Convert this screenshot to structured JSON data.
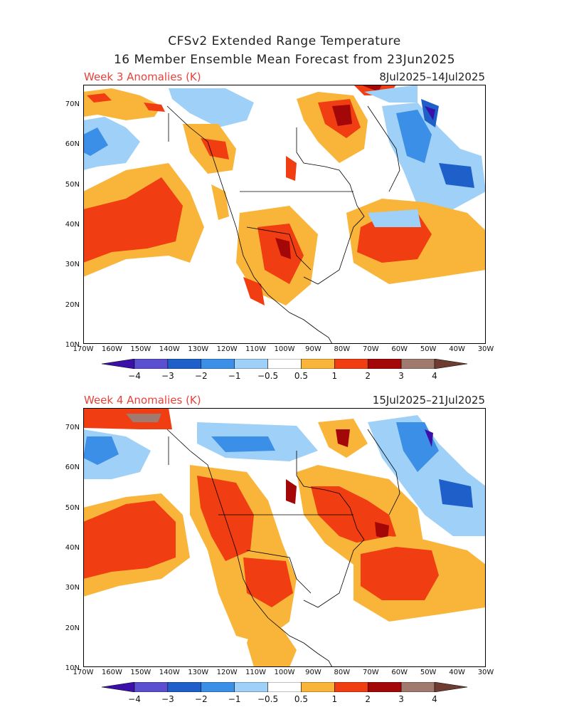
{
  "header": {
    "title_line1": "CFSv2 Extended Range Temperature",
    "title_line2": "16 Member Ensemble Mean Forecast from 23Jun2025"
  },
  "panels": [
    {
      "label": "Week 3 Anomalies (K)",
      "date_range": "8Jul2025–14Jul2025"
    },
    {
      "label": "Week 4 Anomalies (K)",
      "date_range": "15Jul2025–21Jul2025"
    }
  ],
  "axes": {
    "lat_labels": [
      "70N",
      "60N",
      "50N",
      "40N",
      "30N",
      "20N",
      "10N"
    ],
    "lon_labels": [
      "170W",
      "160W",
      "150W",
      "140W",
      "130W",
      "120W",
      "110W",
      "100W",
      "90W",
      "80W",
      "70W",
      "60W",
      "50W",
      "40W",
      "30W"
    ]
  },
  "colorbar": {
    "labels": [
      "−4",
      "−3",
      "−2",
      "−1",
      "−0.5",
      "0.5",
      "1",
      "2",
      "3",
      "4"
    ],
    "colors": [
      "#3a10a8",
      "#5a4fcf",
      "#1e5fc9",
      "#3c8fe6",
      "#9fd0f7",
      "#ffffff",
      "#f9b53a",
      "#f03d12",
      "#a30707",
      "#a07a6e",
      "#6e3c30"
    ]
  }
}
